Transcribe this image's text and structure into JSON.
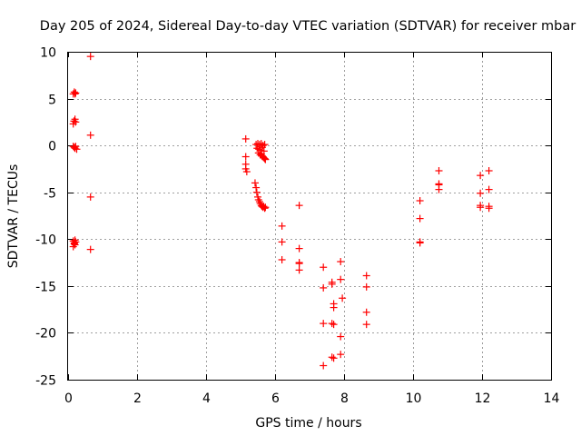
{
  "chart_data": {
    "type": "scatter",
    "title": "Day 205 of 2024, Sidereal Day-to-day VTEC variation (SDTVAR) for receiver mbar",
    "xlabel": "GPS time / hours",
    "ylabel": "SDTVAR / TECUs",
    "xlim": [
      0,
      14
    ],
    "ylim": [
      -25,
      10
    ],
    "xticks": [
      0,
      2,
      4,
      6,
      8,
      10,
      12,
      14
    ],
    "yticks": [
      10,
      5,
      0,
      -5,
      -10,
      -15,
      -20,
      -25
    ],
    "xtick_labels": [
      "0",
      "2",
      "4",
      "6",
      "8",
      "10",
      "12",
      "14"
    ],
    "ytick_labels": [
      "10",
      "5",
      "0",
      "-5",
      "-10",
      "-15",
      "-20",
      "-25"
    ],
    "grid": true,
    "marker": "+",
    "color": "#ff0000",
    "series": [
      {
        "name": "SDTVAR",
        "x": [
          0.15,
          0.18,
          0.2,
          0.22,
          0.15,
          0.17,
          0.2,
          0.22,
          0.15,
          0.18,
          0.2,
          0.22,
          0.25,
          0.15,
          0.18,
          0.2,
          0.22,
          0.15,
          0.18,
          0.2,
          0.65,
          0.65,
          0.65,
          0.65,
          5.15,
          5.15,
          5.15,
          5.15,
          5.18,
          5.45,
          5.5,
          5.55,
          5.6,
          5.65,
          5.7,
          5.48,
          5.53,
          5.58,
          5.63,
          5.68,
          5.52,
          5.57,
          5.62,
          5.67,
          5.72,
          5.6,
          5.65,
          5.7,
          5.42,
          5.45,
          5.47,
          5.5,
          5.52,
          5.55,
          5.57,
          5.6,
          5.62,
          5.65,
          5.67,
          5.7,
          5.72,
          6.2,
          6.2,
          6.2,
          6.7,
          6.7,
          6.7,
          6.7,
          6.7,
          7.4,
          7.4,
          7.4,
          7.4,
          7.65,
          7.65,
          7.7,
          7.7,
          7.65,
          7.7,
          7.65,
          7.7,
          7.9,
          7.9,
          7.95,
          7.9,
          7.9,
          8.65,
          8.65,
          8.65,
          8.65,
          10.2,
          10.2,
          10.2,
          10.2,
          10.75,
          10.75,
          10.75,
          10.75,
          11.95,
          11.95,
          11.95,
          11.95,
          12.2,
          12.2,
          12.2,
          12.2
        ],
        "y": [
          5.5,
          5.7,
          5.5,
          5.6,
          2.3,
          2.6,
          2.8,
          2.5,
          -0.1,
          -0.2,
          -0.3,
          -0.1,
          -0.4,
          -10.2,
          -10.5,
          -10.6,
          -10.3,
          -10.8,
          -10.4,
          -10.1,
          9.5,
          1.1,
          -5.5,
          -11.1,
          0.7,
          -1.2,
          -2.0,
          -2.5,
          -2.8,
          0.1,
          0.2,
          0.1,
          0.2,
          0.0,
          0.1,
          -0.3,
          -0.4,
          -0.5,
          -0.2,
          -0.6,
          -0.8,
          -1.0,
          -1.1,
          -1.3,
          -1.5,
          -0.9,
          -1.2,
          -1.4,
          -4.0,
          -4.5,
          -5.0,
          -5.5,
          -5.8,
          -6.0,
          -6.2,
          -6.4,
          -6.5,
          -6.6,
          -6.5,
          -6.7,
          -6.6,
          -8.6,
          -10.3,
          -12.2,
          -6.4,
          -11.0,
          -12.6,
          -13.3,
          -12.5,
          -13.0,
          -15.2,
          -19.0,
          -23.5,
          -14.6,
          -14.8,
          -16.9,
          -17.3,
          -19.0,
          -19.1,
          -22.6,
          -22.7,
          -12.4,
          -14.3,
          -16.3,
          -20.4,
          -22.3,
          -13.9,
          -15.1,
          -17.8,
          -19.1,
          -5.9,
          -7.8,
          -10.3,
          -10.4,
          -2.7,
          -4.2,
          -4.7,
          -4.1,
          -3.2,
          -5.1,
          -6.4,
          -6.6,
          -2.7,
          -4.7,
          -6.5,
          -6.7
        ]
      }
    ]
  }
}
